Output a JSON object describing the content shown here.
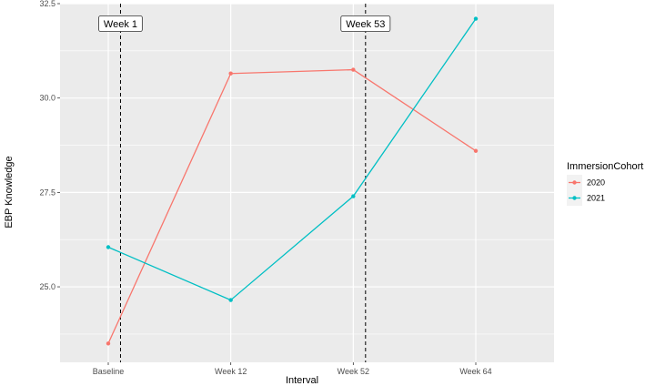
{
  "chart_data": {
    "type": "line",
    "xlabel": "Interval",
    "ylabel": "EBP Knowledge",
    "categories": [
      "Baseline",
      "Week 12",
      "Week 52",
      "Week 64"
    ],
    "ylim": [
      23.0,
      32.5
    ],
    "yticks": [
      25.0,
      27.5,
      30.0,
      32.5
    ],
    "yticks_labels": [
      "25.0",
      "27.5",
      "30.0",
      "32.5"
    ],
    "grid": true,
    "legend": {
      "title": "ImmersionCohort",
      "position": "right"
    },
    "series": [
      {
        "name": "2020",
        "color": "#F8766D",
        "values": [
          23.5,
          30.65,
          30.75,
          28.6
        ]
      },
      {
        "name": "2021",
        "color": "#00BFC4",
        "values": [
          26.05,
          24.65,
          27.4,
          32.1
        ]
      }
    ],
    "annotations": [
      {
        "label": "Week 1",
        "x_position": 0.1
      },
      {
        "label": "Week 53",
        "x_position": 2.1
      }
    ],
    "panel_background": "#EBEBEB",
    "gridline_color": "#FFFFFF"
  }
}
